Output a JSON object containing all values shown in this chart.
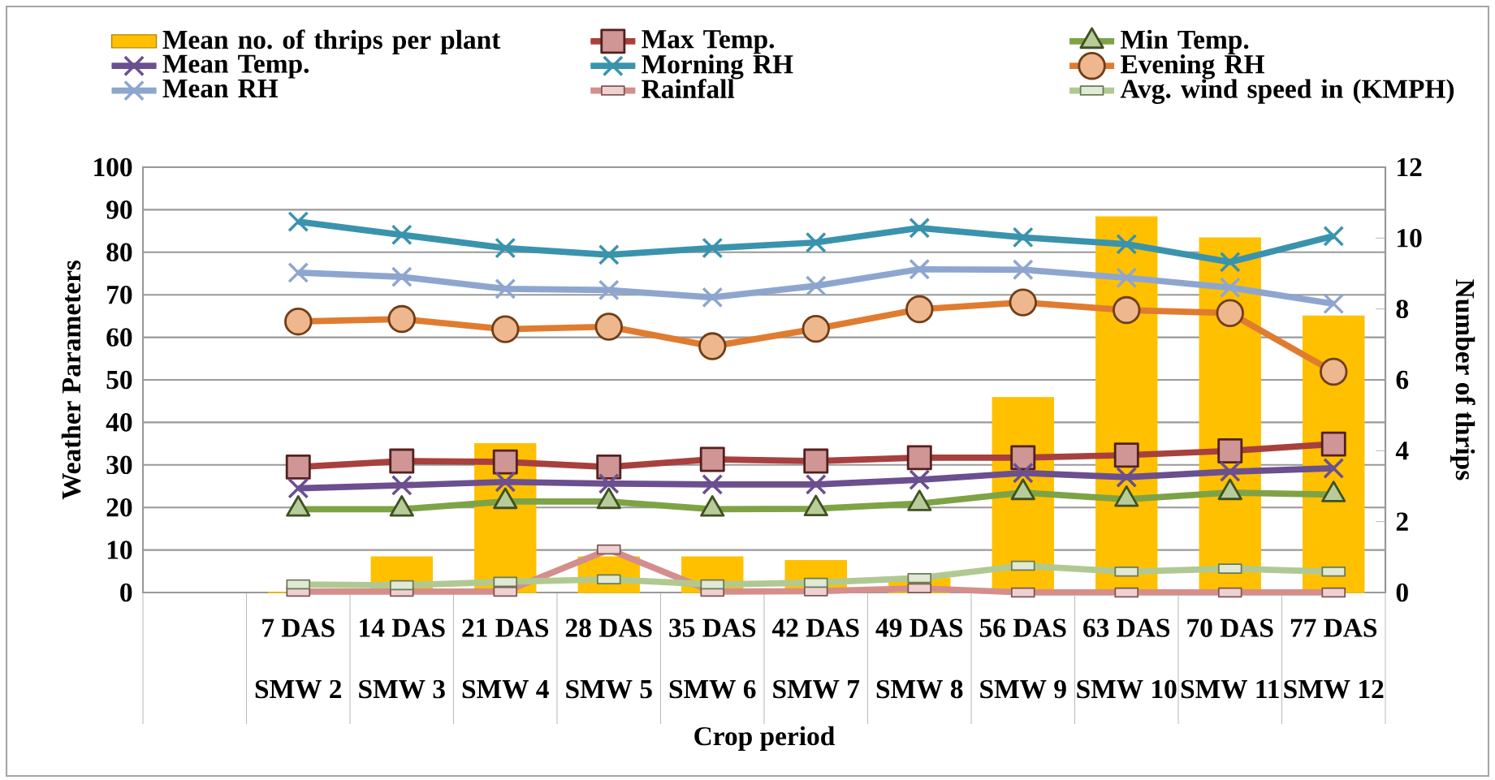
{
  "chart_data": {
    "type": "line",
    "categories": [
      null,
      "7 DAS",
      "14 DAS",
      "21 DAS",
      "28 DAS",
      "35 DAS",
      "42 DAS",
      "49 DAS",
      "56 DAS",
      "63 DAS",
      "70 DAS",
      "77 DAS"
    ],
    "annotations": [
      "SMW 2",
      "SMW 3",
      "SMW 4",
      "SMW 5",
      "SMW 6",
      "SMW 7",
      "SMW 8",
      "SMW 9",
      "SMW 10",
      "SMW 11",
      "SMW 12"
    ],
    "xlabel": "Crop period",
    "ylabel": "Weather Parameters",
    "y2label": "Number of thrips",
    "ylim": [
      0,
      100
    ],
    "yticks": [
      0,
      10,
      20,
      30,
      40,
      50,
      60,
      70,
      80,
      90,
      100
    ],
    "y2lim": [
      0,
      12
    ],
    "y2ticks": [
      0,
      2,
      4,
      6,
      8,
      10,
      12
    ],
    "grid": "y",
    "legend": "top",
    "series": [
      {
        "name": "Mean no. of thrips per plant",
        "type": "bar",
        "axis": "y2",
        "color": "#ffc000",
        "values": [
          null,
          0,
          1.0,
          4.2,
          1.0,
          1.0,
          0.9,
          0.4,
          5.5,
          10.6,
          10.0,
          7.8
        ]
      },
      {
        "name": "Max Temp.",
        "marker": "square",
        "color": "#a8403e",
        "values": [
          null,
          29.5,
          30.9,
          30.7,
          29.5,
          31.3,
          30.9,
          31.7,
          31.7,
          32.3,
          33.3,
          34.9
        ]
      },
      {
        "name": "Min Temp.",
        "marker": "triangle",
        "color": "#7ea346",
        "values": [
          null,
          19.6,
          19.6,
          21.4,
          21.4,
          19.6,
          19.7,
          20.9,
          23.5,
          21.9,
          23.5,
          23.0
        ]
      },
      {
        "name": "Mean Temp.",
        "marker": "cross",
        "color": "#6b4f8f",
        "values": [
          null,
          24.5,
          25.2,
          26.0,
          25.6,
          25.4,
          25.4,
          26.5,
          28.1,
          27.1,
          28.4,
          29.2
        ]
      },
      {
        "name": "Morning RH",
        "marker": "cross",
        "color": "#3a93ad",
        "values": [
          null,
          87.2,
          84.1,
          81.0,
          79.4,
          81.0,
          82.3,
          85.7,
          83.5,
          81.9,
          77.7,
          83.8
        ]
      },
      {
        "name": "Evening RH",
        "marker": "circle",
        "color": "#e07c30",
        "values": [
          null,
          63.7,
          64.3,
          61.9,
          62.5,
          57.9,
          62.0,
          66.6,
          68.2,
          66.4,
          65.7,
          51.9
        ]
      },
      {
        "name": "Mean RH",
        "marker": "cross",
        "color": "#8ea6cf",
        "values": [
          null,
          75.2,
          74.2,
          71.4,
          71.1,
          69.4,
          72.1,
          76.0,
          75.9,
          74.0,
          71.7,
          67.9
        ]
      },
      {
        "name": "Rainfall",
        "marker": "square",
        "color": "#d48e8c",
        "values": [
          null,
          0.2,
          0.2,
          0.2,
          10.1,
          0.2,
          0.3,
          1.0,
          0,
          0,
          0,
          0
        ]
      },
      {
        "name": "Avg. wind speed in (KMPH)",
        "marker": "square",
        "color": "#b0c992",
        "values": [
          null,
          1.9,
          1.7,
          2.5,
          3.1,
          1.9,
          2.3,
          3.4,
          6.3,
          4.9,
          5.6,
          4.9
        ]
      }
    ]
  }
}
